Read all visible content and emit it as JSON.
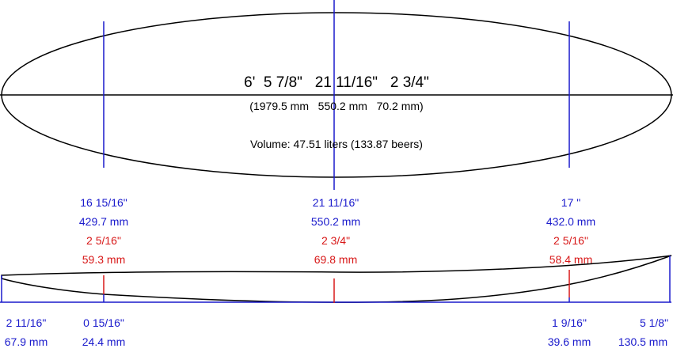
{
  "outline": {
    "dimensions": "6'  5 7/8\"   21 11/16\"   2 3/4\"",
    "dimensions_mm": "(1979.5 mm   550.2 mm   70.2 mm)",
    "volume": "Volume: 47.51 liters (133.87 beers)"
  },
  "stations": [
    {
      "width_in": "16 15/16\"",
      "width_mm": "429.7 mm",
      "thickness_in": "2 5/16\"",
      "thickness_mm": "59.3 mm"
    },
    {
      "width_in": "21 11/16\"",
      "width_mm": "550.2 mm",
      "thickness_in": "2 3/4\"",
      "thickness_mm": "69.8 mm"
    },
    {
      "width_in": "17 \"",
      "width_mm": "432.0 mm",
      "thickness_in": "2 5/16\"",
      "thickness_mm": "58.4 mm"
    }
  ],
  "rocker": [
    {
      "inches": "2 11/16\"",
      "mm": "67.9 mm"
    },
    {
      "inches": "0 15/16\"",
      "mm": "24.4 mm"
    },
    {
      "inches": "1 9/16\"",
      "mm": "39.6 mm"
    },
    {
      "inches": "5 1/8\"",
      "mm": "130.5 mm"
    }
  ]
}
